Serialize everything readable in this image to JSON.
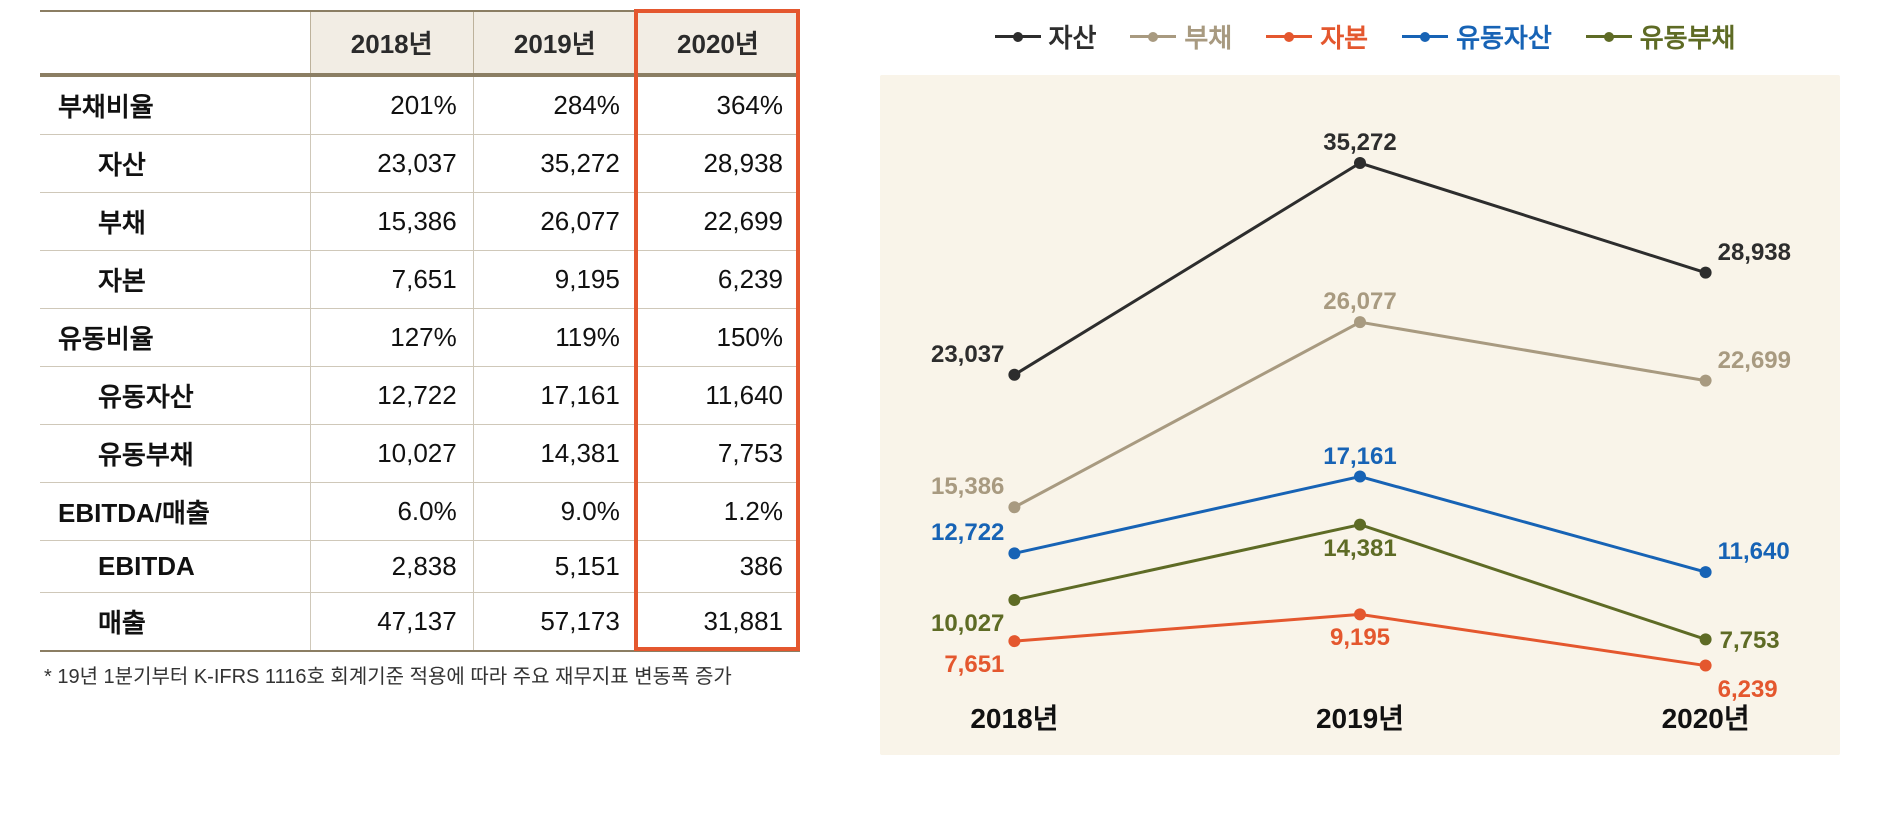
{
  "table": {
    "headers": [
      "",
      "2018년",
      "2019년",
      "2020년"
    ],
    "rows": [
      {
        "type": "main",
        "label": "부채비율",
        "v": [
          "201%",
          "284%",
          "364%"
        ]
      },
      {
        "type": "sub",
        "label": "자산",
        "v": [
          "23,037",
          "35,272",
          "28,938"
        ]
      },
      {
        "type": "sub",
        "label": "부채",
        "v": [
          "15,386",
          "26,077",
          "22,699"
        ]
      },
      {
        "type": "sub",
        "label": "자본",
        "v": [
          "7,651",
          "9,195",
          "6,239"
        ]
      },
      {
        "type": "main",
        "label": "유동비율",
        "v": [
          "127%",
          "119%",
          "150%"
        ]
      },
      {
        "type": "sub",
        "label": "유동자산",
        "v": [
          "12,722",
          "17,161",
          "11,640"
        ]
      },
      {
        "type": "sub",
        "label": "유동부채",
        "v": [
          "10,027",
          "14,381",
          "7,753"
        ]
      },
      {
        "type": "main",
        "label": "EBITDA/매출",
        "v": [
          "6.0%",
          "9.0%",
          "1.2%"
        ]
      },
      {
        "type": "sub",
        "label": "EBITDA",
        "v": [
          "2,838",
          "5,151",
          "386"
        ]
      },
      {
        "type": "sub",
        "label": "매출",
        "v": [
          "47,137",
          "57,173",
          "31,881"
        ]
      }
    ],
    "footnote": "* 19년 1분기부터 K-IFRS 1116호 회계기준 적용에 따라 주요 재무지표 변동폭 증가",
    "highlight_border_color": "#e4572e"
  },
  "chart": {
    "type": "line",
    "background_color": "#f9f4e9",
    "categories": [
      "2018년",
      "2019년",
      "2020년"
    ],
    "x_positions_pct": [
      14,
      50,
      86
    ],
    "y_range": [
      5000,
      38000
    ],
    "plot_top_pct": 6,
    "plot_bottom_pct": 90,
    "line_width": 3,
    "marker_radius": 6,
    "label_fontsize": 24,
    "axis_fontsize": 28,
    "series": [
      {
        "name": "자산",
        "color": "#2d2d2d",
        "values": [
          23037,
          35272,
          28938
        ],
        "labels": [
          "23,037",
          "35,272",
          "28,938"
        ],
        "label_pos": [
          "above-left",
          "above",
          "above-right"
        ]
      },
      {
        "name": "부채",
        "color": "#a89a80",
        "values": [
          15386,
          26077,
          22699
        ],
        "labels": [
          "15,386",
          "26,077",
          "22,699"
        ],
        "label_pos": [
          "above-left",
          "above",
          "above-right"
        ]
      },
      {
        "name": "자본",
        "color": "#e4572e",
        "values": [
          7651,
          9195,
          6239
        ],
        "labels": [
          "7,651",
          "9,195",
          "6,239"
        ],
        "label_pos": [
          "below-left",
          "below",
          "below-right"
        ]
      },
      {
        "name": "유동자산",
        "color": "#1763b5",
        "values": [
          12722,
          17161,
          11640
        ],
        "labels": [
          "12,722",
          "17,161",
          "11,640"
        ],
        "label_pos": [
          "above-left",
          "above",
          "above-right"
        ]
      },
      {
        "name": "유동부채",
        "color": "#5e6b25",
        "values": [
          10027,
          14381,
          7753
        ],
        "labels": [
          "10,027",
          "14,381",
          "7,753"
        ],
        "label_pos": [
          "below-left",
          "below",
          "right"
        ]
      }
    ],
    "legend_order": [
      "자산",
      "부채",
      "자본",
      "유동자산",
      "유동부채"
    ]
  }
}
